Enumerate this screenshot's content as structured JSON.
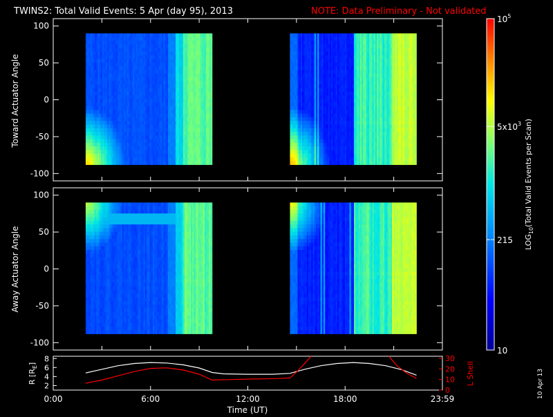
{
  "header": {
    "title": "TWINS2: Total Valid Events:  5 Apr (day  95), 2013",
    "note": "NOTE: Data Preliminary - Not validated",
    "note_color": "#ff0000"
  },
  "footer": {
    "date_stamp": "10 Apr 13"
  },
  "chart_data": [
    {
      "type": "heatmap",
      "panel": "toward",
      "ylabel": "Toward Actuator Angle",
      "ylim": [
        -110,
        110
      ],
      "yticks": [
        100,
        50,
        0,
        -50,
        -100
      ],
      "xlim": [
        0,
        24
      ],
      "angle_range": [
        -88,
        90
      ],
      "data_intervals": [
        [
          2.0,
          9.8
        ],
        [
          14.6,
          22.4
        ]
      ],
      "log_scale": true
    },
    {
      "type": "heatmap",
      "panel": "away",
      "ylabel": "Away Actuator Angle",
      "ylim": [
        -110,
        110
      ],
      "yticks": [
        100,
        50,
        0,
        -50,
        -100
      ],
      "xlim": [
        0,
        24
      ],
      "angle_range": [
        -88,
        90
      ],
      "data_intervals": [
        [
          2.0,
          9.8
        ],
        [
          14.6,
          22.4
        ]
      ],
      "log_scale": true
    },
    {
      "type": "line",
      "panel": "orbit",
      "ylabel_left": "R [R",
      "ylabel_left_sub": "E",
      "ylabel_left_end": "]",
      "ylabel_right": "L Shell",
      "ylim_left": [
        1,
        8.5
      ],
      "yticks_left": [
        "8",
        "6",
        "4",
        "2"
      ],
      "ylim_right": [
        0,
        32
      ],
      "yticks_right": [
        "30",
        "20",
        "10",
        "0"
      ],
      "xlim": [
        0,
        24
      ],
      "xticks": [
        {
          "x": 0,
          "label": "0:00"
        },
        {
          "x": 6,
          "label": "6:00"
        },
        {
          "x": 12,
          "label": "12:00"
        },
        {
          "x": 18,
          "label": "18:00"
        },
        {
          "x": 24,
          "label": "23:59"
        }
      ],
      "xlabel": "Time (UT)",
      "series": [
        {
          "axis": "left",
          "color": "#ffffff",
          "x": [
            2.0,
            3.0,
            4.0,
            5.0,
            6.0,
            7.0,
            8.0,
            9.0,
            9.8,
            10.5,
            12.0,
            13.5,
            14.6,
            15.5,
            16.5,
            17.5,
            18.5,
            19.5,
            20.5,
            21.5,
            22.4
          ],
          "y": [
            4.8,
            5.6,
            6.4,
            6.9,
            7.1,
            7.0,
            6.6,
            5.9,
            4.9,
            4.6,
            4.5,
            4.5,
            4.7,
            5.6,
            6.4,
            6.9,
            7.1,
            6.9,
            6.4,
            5.5,
            4.3
          ]
        },
        {
          "axis": "right",
          "color": "#ff0000",
          "x": [
            2.0,
            3.0,
            4.0,
            5.0,
            6.0,
            7.0,
            8.0,
            9.0,
            9.8,
            11.0,
            12.5,
            14.0,
            14.6,
            15.0,
            15.5,
            15.9
          ],
          "y": [
            6.5,
            9.5,
            13.5,
            17.5,
            20.5,
            21.0,
            19.0,
            15.0,
            9.5,
            10.0,
            10.5,
            11.0,
            11.5,
            17.0,
            25.0,
            32.0
          ]
        },
        {
          "axis": "right",
          "color": "#ff0000",
          "x": [
            20.7,
            21.2,
            21.8,
            22.4
          ],
          "y": [
            32.0,
            23.0,
            16.0,
            11.0
          ]
        }
      ]
    }
  ],
  "colorbar": {
    "label": "LOG",
    "label_sub": "10",
    "label_rest": "(Total Valid  Events per Scan)",
    "ticks": [
      {
        "base": "10",
        "exp": "5",
        "value": 100000
      },
      {
        "base": "5x10",
        "exp": "3",
        "value": 5000
      },
      {
        "base": "215",
        "exp": "",
        "value": 215
      },
      {
        "base": "10",
        "exp": "",
        "value": 10
      }
    ],
    "range": [
      10,
      100000
    ]
  }
}
